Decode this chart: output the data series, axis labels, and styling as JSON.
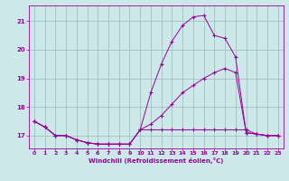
{
  "xlabel": "Windchill (Refroidissement éolien,°C)",
  "hours": [
    0,
    1,
    2,
    3,
    4,
    5,
    6,
    7,
    8,
    9,
    10,
    11,
    12,
    13,
    14,
    15,
    16,
    17,
    18,
    19,
    20,
    21,
    22,
    23
  ],
  "line1": [
    17.5,
    17.3,
    17.0,
    17.0,
    16.85,
    16.75,
    16.7,
    16.7,
    16.7,
    16.7,
    17.2,
    18.5,
    19.5,
    20.3,
    20.85,
    21.15,
    21.2,
    20.5,
    20.4,
    19.75,
    17.1,
    17.05,
    17.0,
    17.0
  ],
  "line2": [
    17.5,
    17.3,
    17.0,
    17.0,
    16.85,
    16.75,
    16.7,
    16.7,
    16.7,
    16.7,
    17.2,
    17.2,
    17.2,
    17.2,
    17.2,
    17.2,
    17.2,
    17.2,
    17.2,
    17.2,
    17.2,
    17.05,
    17.0,
    17.0
  ],
  "line3": [
    17.5,
    17.3,
    17.0,
    17.0,
    16.85,
    16.75,
    16.7,
    16.7,
    16.7,
    16.7,
    17.2,
    17.4,
    17.7,
    18.1,
    18.5,
    18.75,
    19.0,
    19.2,
    19.35,
    19.2,
    17.1,
    17.05,
    17.0,
    17.0
  ],
  "line_color": "#990099",
  "bg_color": "#cce8e8",
  "grid_color": "#99bbbb",
  "ylim": [
    16.55,
    21.55
  ],
  "yticks": [
    17,
    18,
    19,
    20,
    21
  ],
  "xticks": [
    0,
    1,
    2,
    3,
    4,
    5,
    6,
    7,
    8,
    9,
    10,
    11,
    12,
    13,
    14,
    15,
    16,
    17,
    18,
    19,
    20,
    21,
    22,
    23
  ]
}
